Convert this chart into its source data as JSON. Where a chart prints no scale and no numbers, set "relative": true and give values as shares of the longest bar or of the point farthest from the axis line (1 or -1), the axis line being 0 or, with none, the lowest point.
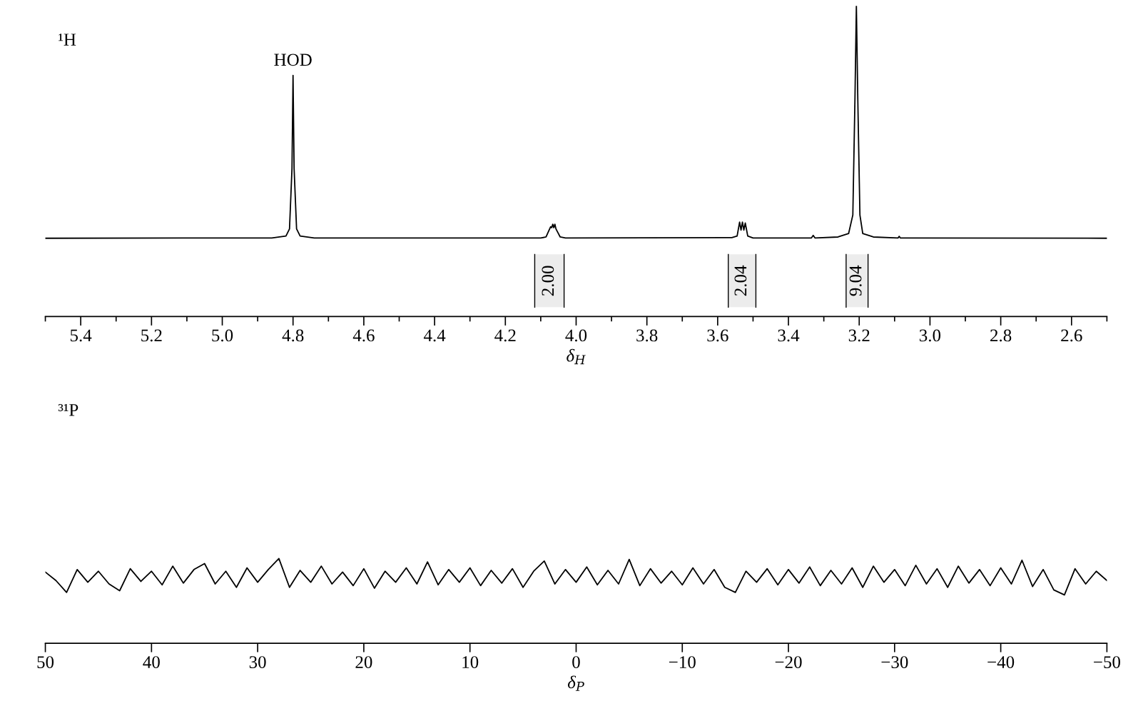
{
  "chart_data": [
    {
      "type": "line",
      "title": "¹H",
      "xlabel": "δ$_{H}$",
      "relative": true,
      "color": "#000000",
      "tick_labels": "x",
      "grid": false,
      "legend": false,
      "x": [
        5.5,
        4.86,
        4.82,
        4.81,
        4.803,
        4.8,
        4.797,
        4.79,
        4.78,
        4.74,
        4.1,
        4.085,
        4.078,
        4.072,
        4.069,
        4.066,
        4.063,
        4.06,
        4.057,
        4.052,
        4.045,
        4.03,
        3.56,
        3.545,
        3.538,
        3.534,
        3.53,
        3.526,
        3.522,
        3.515,
        3.5,
        3.335,
        3.33,
        3.325,
        3.26,
        3.23,
        3.218,
        3.212,
        3.208,
        3.204,
        3.198,
        3.19,
        3.16,
        3.09,
        3.087,
        3.084,
        2.5
      ],
      "values": [
        0.252,
        0.253,
        0.259,
        0.282,
        0.476,
        0.776,
        0.476,
        0.282,
        0.259,
        0.253,
        0.253,
        0.256,
        0.274,
        0.289,
        0.286,
        0.297,
        0.286,
        0.297,
        0.282,
        0.271,
        0.256,
        0.253,
        0.254,
        0.259,
        0.304,
        0.278,
        0.304,
        0.278,
        0.301,
        0.259,
        0.253,
        0.253,
        0.261,
        0.253,
        0.256,
        0.267,
        0.327,
        0.701,
        1.0,
        0.701,
        0.327,
        0.267,
        0.256,
        0.253,
        0.258,
        0.253,
        0.252
      ],
      "xlim": [
        5.5,
        2.5
      ],
      "xticks": [
        {
          "value": 5.5,
          "label": null
        },
        5.4,
        {
          "value": 5.3,
          "label": null
        },
        5.2,
        {
          "value": 5.1,
          "label": null
        },
        {
          "value": 5.0,
          "label": "5.0"
        },
        {
          "value": 4.9,
          "label": null
        },
        4.8,
        {
          "value": 4.7,
          "label": null
        },
        4.6,
        {
          "value": 4.5,
          "label": null
        },
        4.4,
        {
          "value": 4.3,
          "label": null
        },
        4.2,
        {
          "value": 4.1,
          "label": null
        },
        {
          "value": 4.0,
          "label": "4.0"
        },
        {
          "value": 3.9,
          "label": null
        },
        3.8,
        {
          "value": 3.7,
          "label": null
        },
        3.6,
        {
          "value": 3.5,
          "label": null
        },
        3.4,
        {
          "value": 3.3,
          "label": null
        },
        3.2,
        {
          "value": 3.1,
          "label": null
        },
        {
          "value": 3.0,
          "label": "3.0"
        },
        {
          "value": 2.9,
          "label": null
        },
        2.8,
        {
          "value": 2.7,
          "label": null
        },
        2.6,
        {
          "value": 2.5,
          "label": null
        }
      ],
      "annotations": [
        {
          "text": "HOD",
          "x": 4.8,
          "y": 0.776
        }
      ],
      "bands": [
        {
          "axis": "x",
          "from": 4.117,
          "to": 4.034,
          "label": "2.00"
        },
        {
          "axis": "x",
          "from": 3.57,
          "to": 3.492,
          "label": "2.04"
        },
        {
          "axis": "x",
          "from": 3.237,
          "to": 3.175,
          "label": "9.04"
        }
      ]
    },
    {
      "type": "line",
      "title": "³¹P",
      "xlabel": "δ$_{P}$",
      "relative": true,
      "color": "#000000",
      "tick_labels": "x",
      "grid": false,
      "legend": false,
      "x": [
        50,
        49,
        48,
        47,
        46,
        45,
        44,
        43,
        42,
        41,
        40,
        39,
        38,
        37,
        36,
        35,
        34,
        33,
        32,
        31,
        30,
        29,
        28,
        27,
        26,
        25,
        24,
        23,
        22,
        21,
        20,
        19,
        18,
        17,
        16,
        15,
        14,
        13,
        12,
        11,
        10,
        9,
        8,
        7,
        6,
        5,
        4,
        3,
        2,
        1,
        0,
        -1,
        -2,
        -3,
        -4,
        -5,
        -6,
        -7,
        -8,
        -9,
        -10,
        -11,
        -12,
        -13,
        -14,
        -15,
        -16,
        -17,
        -18,
        -19,
        -20,
        -21,
        -22,
        -23,
        -24,
        -25,
        -26,
        -27,
        -28,
        -29,
        -30,
        -31,
        -32,
        -33,
        -34,
        -35,
        -36,
        -37,
        -38,
        -39,
        -40,
        -41,
        -42,
        -43,
        -44,
        -45,
        -46,
        -47,
        -48,
        -49,
        -50
      ],
      "values": [
        0.84,
        0.74,
        0.6,
        0.87,
        0.72,
        0.85,
        0.7,
        0.62,
        0.88,
        0.73,
        0.85,
        0.69,
        0.91,
        0.71,
        0.87,
        0.94,
        0.7,
        0.85,
        0.66,
        0.89,
        0.72,
        0.87,
        1.0,
        0.66,
        0.86,
        0.72,
        0.91,
        0.7,
        0.84,
        0.68,
        0.88,
        0.65,
        0.85,
        0.72,
        0.89,
        0.7,
        0.96,
        0.69,
        0.87,
        0.72,
        0.89,
        0.68,
        0.86,
        0.71,
        0.88,
        0.66,
        0.85,
        0.97,
        0.7,
        0.87,
        0.72,
        0.9,
        0.69,
        0.86,
        0.7,
        0.99,
        0.68,
        0.88,
        0.71,
        0.85,
        0.69,
        0.89,
        0.7,
        0.87,
        0.66,
        0.6,
        0.85,
        0.72,
        0.88,
        0.69,
        0.87,
        0.71,
        0.9,
        0.68,
        0.86,
        0.7,
        0.89,
        0.66,
        0.91,
        0.72,
        0.87,
        0.68,
        0.92,
        0.7,
        0.88,
        0.66,
        0.91,
        0.71,
        0.87,
        0.68,
        0.89,
        0.7,
        0.98,
        0.67,
        0.87,
        0.63,
        0.57,
        0.88,
        0.7,
        0.85,
        0.74
      ],
      "xlim": [
        50,
        -50
      ],
      "xticks": [
        50,
        40,
        30,
        20,
        10,
        0,
        {
          "value": -10,
          "label": "−10"
        },
        {
          "value": -20,
          "label": "−20"
        },
        {
          "value": -30,
          "label": "−30"
        },
        {
          "value": -40,
          "label": "−40"
        },
        {
          "value": -50,
          "label": "−50"
        }
      ]
    }
  ]
}
